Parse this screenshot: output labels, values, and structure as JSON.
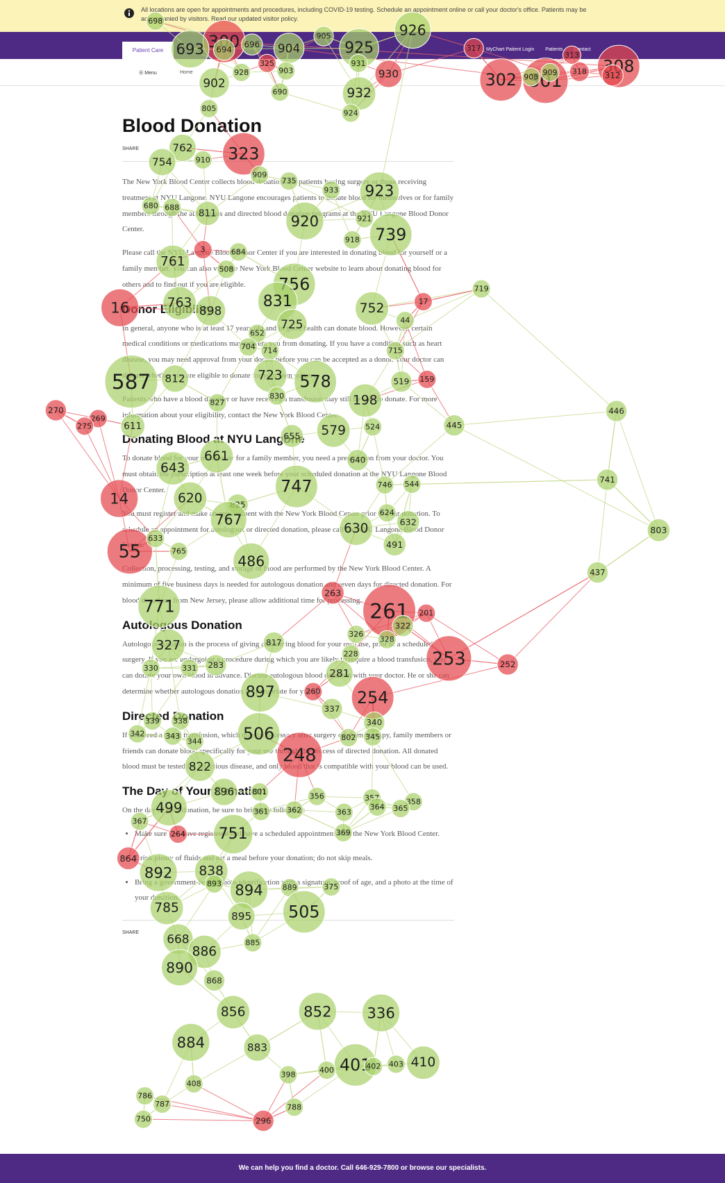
{
  "banner": {
    "text": "All locations are open for appointments and procedures, including COVID-19 testing. Schedule an appointment online or call your doctor's office. Patients may be accompanied by visitors. Read our updated visitor policy."
  },
  "nav": {
    "tab": "Patient Care",
    "links": [
      "MyChart Patient Login",
      "Patients",
      "Contact"
    ],
    "menu": "Menu",
    "breadcrumb": "Home"
  },
  "article": {
    "title": "Blood Donation",
    "share": "SHARE",
    "blocks": [
      {
        "kind": "p",
        "text": "The New York Blood Center collects blood donations for patients having surgery or those receiving treatment at NYU Langone. NYU Langone encourages patients to donate blood for themselves or for family members through the autologous and directed blood donation programs at the NYU Langone Blood Donor Center."
      },
      {
        "kind": "p",
        "text": "Please call the NYU Langone Blood Donor Center if you are interested in donating blood for yourself or a family member. You can also visit the New York Blood Center website to learn about donating blood for others and to find out if you are eligible."
      },
      {
        "kind": "h",
        "text": "Donor Eligibility"
      },
      {
        "kind": "p",
        "text": "In general, anyone who is at least 17 years old and in good health can donate blood. However, certain medical conditions or medications may prevent you from donating. If you have a condition such as heart disease, you may need approval from your doctor before you can be accepted as a donor. Your doctor can discuss whether you are eligible to donate for your own surgery."
      },
      {
        "kind": "p",
        "text": "Patients who have a blood disorder or have received a transfusion may still be able to donate. For more information about your eligibility, contact the New York Blood Center."
      },
      {
        "kind": "h",
        "text": "Donating Blood at NYU Langone"
      },
      {
        "kind": "p",
        "text": "To donate blood for your own use or for a family member, you need a prescription from your doctor. You must obtain the prescription at least one week before your scheduled donation at the NYU Langone Blood Donor Center."
      },
      {
        "kind": "p",
        "text": "You must register and make an appointment with the New York Blood Center prior to your donation. To schedule an appointment for autologous or directed donation, please call the NYU Langone Blood Donor Center."
      },
      {
        "kind": "p",
        "text": "Collection, processing, testing, and storage of blood are performed by the New York Blood Center. A minimum of five business days is needed for autologous donation and seven days for directed donation. For blood donations from New Jersey, please allow additional time for processing."
      },
      {
        "kind": "h",
        "text": "Autologous Donation"
      },
      {
        "kind": "p",
        "text": "Autologous donation is the process of giving and storing blood for your own use, prior to a scheduled surgery. If you are undergoing a procedure during which you are likely to require a blood transfusion, you can donate your own blood in advance. Discuss autologous blood donation with your doctor. He or she can determine whether autologous donation is appropriate for you."
      },
      {
        "kind": "h",
        "text": "Directed Donation"
      },
      {
        "kind": "p",
        "text": "If you need a blood transfusion, which may be necessary after surgery or chemotherapy, family members or friends can donate blood specifically for your use through the process of directed donation. All donated blood must be tested for infectious disease, and only blood that is compatible with your blood can be used."
      },
      {
        "kind": "h",
        "text": "The Day of Your Donation"
      },
      {
        "kind": "p",
        "text": "On the day of your donation, be sure to bring the following:"
      },
      {
        "kind": "li",
        "text": "Make sure you have registered and have a scheduled appointment with the New York Blood Center."
      },
      {
        "kind": "li",
        "text": "Drink plenty of fluids and eat a meal before your donation; do not skip meals."
      },
      {
        "kind": "li",
        "text": "Bring a government-issued photo identification with a signature, proof of age, and a photo at the time of your donation."
      }
    ]
  },
  "footer": {
    "text": "We can help you find a doctor. Call 646-929-7800 or browse our specialists."
  },
  "nodes": [
    {
      "label": "698",
      "color": "#a9d16b"
    },
    {
      "label": "300",
      "color": "#e5484d"
    },
    {
      "label": "693",
      "color": "#a9d16b"
    },
    {
      "label": "694",
      "color": "#a9d16b"
    },
    {
      "label": "696",
      "color": "#a9d16b"
    },
    {
      "label": "904",
      "color": "#a9d16b"
    },
    {
      "label": "905",
      "color": "#a9d16b"
    },
    {
      "label": "926",
      "color": "#a9d16b"
    },
    {
      "label": "925",
      "color": "#a9d16b"
    },
    {
      "label": "317",
      "color": "#e5484d"
    },
    {
      "label": "302",
      "color": "#e5484d"
    },
    {
      "label": "301",
      "color": "#e5484d"
    },
    {
      "label": "908",
      "color": "#a9d16b"
    },
    {
      "label": "909",
      "color": "#a9d16b"
    },
    {
      "label": "318",
      "color": "#e5484d"
    },
    {
      "label": "313",
      "color": "#e5484d"
    },
    {
      "label": "308",
      "color": "#e5484d"
    },
    {
      "label": "312",
      "color": "#e5484d"
    },
    {
      "label": "325",
      "color": "#e5484d"
    },
    {
      "label": "903",
      "color": "#a9d16b"
    },
    {
      "label": "928",
      "color": "#a9d16b"
    },
    {
      "label": "930",
      "color": "#e5484d"
    },
    {
      "label": "931",
      "color": "#a9d16b"
    },
    {
      "label": "932",
      "color": "#a9d16b"
    },
    {
      "label": "902",
      "color": "#a9d16b"
    },
    {
      "label": "690",
      "color": "#a9d16b"
    },
    {
      "label": "805",
      "color": "#a9d16b"
    },
    {
      "label": "924",
      "color": "#a9d16b"
    },
    {
      "label": "323",
      "color": "#e5484d"
    },
    {
      "label": "910",
      "color": "#a9d16b"
    },
    {
      "label": "762",
      "color": "#a9d16b"
    },
    {
      "label": "754",
      "color": "#a9d16b"
    },
    {
      "label": "909",
      "color": "#a9d16b"
    },
    {
      "label": "735",
      "color": "#a9d16b"
    },
    {
      "label": "933",
      "color": "#a9d16b"
    },
    {
      "label": "923",
      "color": "#a9d16b"
    },
    {
      "label": "680",
      "color": "#a9d16b"
    },
    {
      "label": "688",
      "color": "#a9d16b"
    },
    {
      "label": "811",
      "color": "#a9d16b"
    },
    {
      "label": "920",
      "color": "#a9d16b"
    },
    {
      "label": "739",
      "color": "#a9d16b"
    },
    {
      "label": "921",
      "color": "#a9d16b"
    },
    {
      "label": "918",
      "color": "#a9d16b"
    },
    {
      "label": "3",
      "color": "#e5484d"
    },
    {
      "label": "684",
      "color": "#a9d16b"
    },
    {
      "label": "761",
      "color": "#a9d16b"
    },
    {
      "label": "508",
      "color": "#a9d16b"
    },
    {
      "label": "756",
      "color": "#a9d16b"
    },
    {
      "label": "719",
      "color": "#a9d16b"
    },
    {
      "label": "16",
      "color": "#e5484d"
    },
    {
      "label": "763",
      "color": "#a9d16b"
    },
    {
      "label": "898",
      "color": "#a9d16b"
    },
    {
      "label": "831",
      "color": "#a9d16b"
    },
    {
      "label": "725",
      "color": "#a9d16b"
    },
    {
      "label": "752",
      "color": "#a9d16b"
    },
    {
      "label": "17",
      "color": "#e5484d"
    },
    {
      "label": "44",
      "color": "#a9d16b"
    },
    {
      "label": "652",
      "color": "#a9d16b"
    },
    {
      "label": "704",
      "color": "#a9d16b"
    },
    {
      "label": "714",
      "color": "#a9d16b"
    },
    {
      "label": "715",
      "color": "#a9d16b"
    },
    {
      "label": "587",
      "color": "#a9d16b"
    },
    {
      "label": "812",
      "color": "#a9d16b"
    },
    {
      "label": "723",
      "color": "#a9d16b"
    },
    {
      "label": "578",
      "color": "#a9d16b"
    },
    {
      "label": "198",
      "color": "#a9d16b"
    },
    {
      "label": "519",
      "color": "#a9d16b"
    },
    {
      "label": "159",
      "color": "#e5484d"
    },
    {
      "label": "830",
      "color": "#a9d16b"
    },
    {
      "label": "827",
      "color": "#a9d16b"
    },
    {
      "label": "270",
      "color": "#e5484d"
    },
    {
      "label": "269",
      "color": "#e5484d"
    },
    {
      "label": "275",
      "color": "#e5484d"
    },
    {
      "label": "446",
      "color": "#a9d16b"
    },
    {
      "label": "445",
      "color": "#a9d16b"
    },
    {
      "label": "611",
      "color": "#a9d16b"
    },
    {
      "label": "579",
      "color": "#a9d16b"
    },
    {
      "label": "655",
      "color": "#a9d16b"
    },
    {
      "label": "524",
      "color": "#a9d16b"
    },
    {
      "label": "661",
      "color": "#a9d16b"
    },
    {
      "label": "643",
      "color": "#a9d16b"
    },
    {
      "label": "747",
      "color": "#a9d16b"
    },
    {
      "label": "640",
      "color": "#a9d16b"
    },
    {
      "label": "741",
      "color": "#a9d16b"
    },
    {
      "label": "746",
      "color": "#a9d16b"
    },
    {
      "label": "544",
      "color": "#a9d16b"
    },
    {
      "label": "14",
      "color": "#e5484d"
    },
    {
      "label": "620",
      "color": "#a9d16b"
    },
    {
      "label": "825",
      "color": "#a9d16b"
    },
    {
      "label": "767",
      "color": "#a9d16b"
    },
    {
      "label": "630",
      "color": "#a9d16b"
    },
    {
      "label": "632",
      "color": "#a9d16b"
    },
    {
      "label": "803",
      "color": "#a9d16b"
    },
    {
      "label": "624",
      "color": "#a9d16b"
    },
    {
      "label": "491",
      "color": "#a9d16b"
    },
    {
      "label": "55",
      "color": "#e5484d"
    },
    {
      "label": "633",
      "color": "#a9d16b"
    },
    {
      "label": "765",
      "color": "#a9d16b"
    },
    {
      "label": "486",
      "color": "#a9d16b"
    },
    {
      "label": "437",
      "color": "#a9d16b"
    },
    {
      "label": "263",
      "color": "#e5484d"
    },
    {
      "label": "771",
      "color": "#a9d16b"
    },
    {
      "label": "261",
      "color": "#e5484d"
    },
    {
      "label": "201",
      "color": "#e5484d"
    },
    {
      "label": "322",
      "color": "#a9d16b"
    },
    {
      "label": "327",
      "color": "#a9d16b"
    },
    {
      "label": "817",
      "color": "#a9d16b"
    },
    {
      "label": "326",
      "color": "#a9d16b"
    },
    {
      "label": "328",
      "color": "#a9d16b"
    },
    {
      "label": "253",
      "color": "#e5484d"
    },
    {
      "label": "252",
      "color": "#e5484d"
    },
    {
      "label": "228",
      "color": "#a9d16b"
    },
    {
      "label": "330",
      "color": "#a9d16b"
    },
    {
      "label": "331",
      "color": "#a9d16b"
    },
    {
      "label": "283",
      "color": "#a9d16b"
    },
    {
      "label": "281",
      "color": "#a9d16b"
    },
    {
      "label": "897",
      "color": "#a9d16b"
    },
    {
      "label": "254",
      "color": "#e5484d"
    },
    {
      "label": "260",
      "color": "#e5484d"
    },
    {
      "label": "337",
      "color": "#a9d16b"
    },
    {
      "label": "339",
      "color": "#a9d16b"
    },
    {
      "label": "338",
      "color": "#a9d16b"
    },
    {
      "label": "340",
      "color": "#a9d16b"
    },
    {
      "label": "342",
      "color": "#a9d16b"
    },
    {
      "label": "343",
      "color": "#a9d16b"
    },
    {
      "label": "344",
      "color": "#a9d16b"
    },
    {
      "label": "506",
      "color": "#a9d16b"
    },
    {
      "label": "802",
      "color": "#a9d16b"
    },
    {
      "label": "345",
      "color": "#a9d16b"
    },
    {
      "label": "248",
      "color": "#e5484d"
    },
    {
      "label": "822",
      "color": "#a9d16b"
    },
    {
      "label": "896",
      "color": "#a9d16b"
    },
    {
      "label": "801",
      "color": "#a9d16b"
    },
    {
      "label": "356",
      "color": "#a9d16b"
    },
    {
      "label": "357",
      "color": "#a9d16b"
    },
    {
      "label": "358",
      "color": "#a9d16b"
    },
    {
      "label": "499",
      "color": "#a9d16b"
    },
    {
      "label": "361",
      "color": "#a9d16b"
    },
    {
      "label": "362",
      "color": "#a9d16b"
    },
    {
      "label": "363",
      "color": "#a9d16b"
    },
    {
      "label": "364",
      "color": "#a9d16b"
    },
    {
      "label": "365",
      "color": "#a9d16b"
    },
    {
      "label": "367",
      "color": "#a9d16b"
    },
    {
      "label": "751",
      "color": "#a9d16b"
    },
    {
      "label": "369",
      "color": "#a9d16b"
    },
    {
      "label": "264",
      "color": "#e5484d"
    },
    {
      "label": "864",
      "color": "#e5484d"
    },
    {
      "label": "892",
      "color": "#a9d16b"
    },
    {
      "label": "838",
      "color": "#a9d16b"
    },
    {
      "label": "893",
      "color": "#a9d16b"
    },
    {
      "label": "894",
      "color": "#a9d16b"
    },
    {
      "label": "889",
      "color": "#a9d16b"
    },
    {
      "label": "375",
      "color": "#a9d16b"
    },
    {
      "label": "785",
      "color": "#a9d16b"
    },
    {
      "label": "895",
      "color": "#a9d16b"
    },
    {
      "label": "505",
      "color": "#a9d16b"
    },
    {
      "label": "668",
      "color": "#a9d16b"
    },
    {
      "label": "885",
      "color": "#a9d16b"
    },
    {
      "label": "886",
      "color": "#a9d16b"
    },
    {
      "label": "890",
      "color": "#a9d16b"
    },
    {
      "label": "868",
      "color": "#a9d16b"
    },
    {
      "label": "856",
      "color": "#a9d16b"
    },
    {
      "label": "852",
      "color": "#a9d16b"
    },
    {
      "label": "336",
      "color": "#a9d16b"
    },
    {
      "label": "884",
      "color": "#a9d16b"
    },
    {
      "label": "883",
      "color": "#a9d16b"
    },
    {
      "label": "401",
      "color": "#a9d16b"
    },
    {
      "label": "410",
      "color": "#a9d16b"
    },
    {
      "label": "400",
      "color": "#a9d16b"
    },
    {
      "label": "402",
      "color": "#a9d16b"
    },
    {
      "label": "403",
      "color": "#a9d16b"
    },
    {
      "label": "398",
      "color": "#a9d16b"
    },
    {
      "label": "408",
      "color": "#a9d16b"
    },
    {
      "label": "786",
      "color": "#a9d16b"
    },
    {
      "label": "787",
      "color": "#a9d16b"
    },
    {
      "label": "788",
      "color": "#a9d16b"
    },
    {
      "label": "750",
      "color": "#a9d16b"
    },
    {
      "label": "296",
      "color": "#e5484d"
    }
  ]
}
